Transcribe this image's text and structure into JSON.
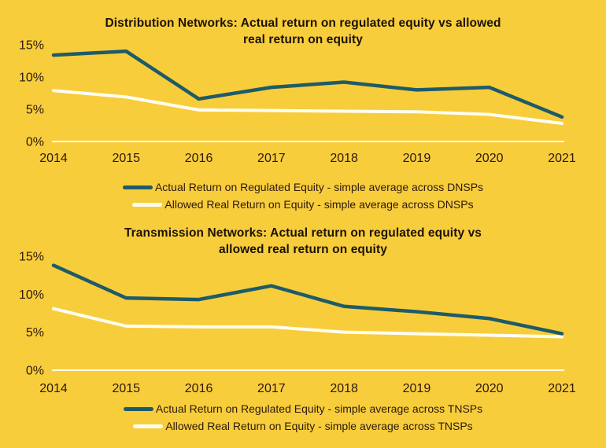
{
  "page": {
    "background_color": "#F8CD3C",
    "text_color": "#2C190B"
  },
  "chart_data": [
    {
      "type": "line",
      "id": "distribution-networks",
      "title_lines": [
        "Distribution Networks: Actual return on regulated equity vs allowed",
        "real return on equity"
      ],
      "categories": [
        "2014",
        "2015",
        "2016",
        "2017",
        "2018",
        "2019",
        "2020",
        "2021"
      ],
      "series": [
        {
          "name": "Actual Return on Regulated Equity - simple average across DNSPs",
          "color": "#1E5B68",
          "values": [
            13.4,
            14.0,
            6.6,
            8.4,
            9.2,
            8.0,
            8.4,
            3.8
          ]
        },
        {
          "name": "Allowed Real Return on Equity - simple average across DNSPs",
          "color": "#FFFEF2",
          "values": [
            7.9,
            6.9,
            4.9,
            4.8,
            4.7,
            4.6,
            4.2,
            2.8
          ]
        }
      ],
      "ylim": [
        0,
        15
      ],
      "yticks": [
        {
          "label": "15%",
          "value": 15
        },
        {
          "label": "10%",
          "value": 10
        },
        {
          "label": "5%",
          "value": 5
        },
        {
          "label": "0%",
          "value": 0
        }
      ],
      "grid": "baseline-only",
      "legend_position": "bottom"
    },
    {
      "type": "line",
      "id": "transmission-networks",
      "title_lines": [
        "Transmission Networks: Actual return on regulated equity vs",
        "allowed real return on equity"
      ],
      "categories": [
        "2014",
        "2015",
        "2016",
        "2017",
        "2018",
        "2019",
        "2020",
        "2021"
      ],
      "series": [
        {
          "name": "Actual Return on Regulated Equity - simple average across TNSPs",
          "color": "#1E5B68",
          "values": [
            13.8,
            9.5,
            9.3,
            11.1,
            8.4,
            7.7,
            6.8,
            4.8
          ]
        },
        {
          "name": "Allowed Real Return on Equity - simple average across TNSPs",
          "color": "#FFFEF2",
          "values": [
            8.1,
            5.8,
            5.7,
            5.7,
            5.0,
            4.8,
            4.6,
            4.4
          ]
        }
      ],
      "ylim": [
        0,
        15
      ],
      "yticks": [
        {
          "label": "15%",
          "value": 15
        },
        {
          "label": "10%",
          "value": 10
        },
        {
          "label": "5%",
          "value": 5
        },
        {
          "label": "0%",
          "value": 0
        }
      ],
      "grid": "baseline-only",
      "legend_position": "bottom"
    }
  ]
}
